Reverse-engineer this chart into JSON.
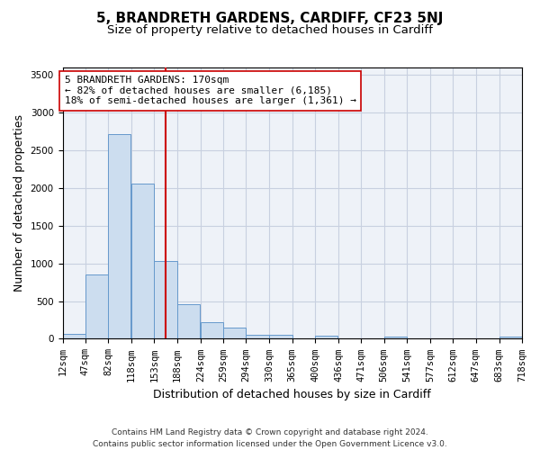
{
  "title_line1": "5, BRANDRETH GARDENS, CARDIFF, CF23 5NJ",
  "title_line2": "Size of property relative to detached houses in Cardiff",
  "xlabel": "Distribution of detached houses by size in Cardiff",
  "ylabel": "Number of detached properties",
  "bar_color": "#ccddef",
  "bar_edgecolor": "#6699cc",
  "bar_linewidth": 0.7,
  "grid_color": "#c8d0e0",
  "background_color": "#eef2f8",
  "vline_x": 170.5,
  "vline_color": "#cc0000",
  "bins": [
    12,
    47,
    82,
    118,
    153,
    188,
    224,
    259,
    294,
    330,
    365,
    400,
    436,
    471,
    506,
    541,
    577,
    612,
    647,
    683,
    718
  ],
  "bin_labels": [
    "12sqm",
    "47sqm",
    "82sqm",
    "118sqm",
    "153sqm",
    "188sqm",
    "224sqm",
    "259sqm",
    "294sqm",
    "330sqm",
    "365sqm",
    "400sqm",
    "436sqm",
    "471sqm",
    "506sqm",
    "541sqm",
    "577sqm",
    "612sqm",
    "647sqm",
    "683sqm",
    "718sqm"
  ],
  "bar_heights": [
    65,
    855,
    2720,
    2060,
    1030,
    455,
    220,
    150,
    55,
    55,
    0,
    40,
    0,
    0,
    25,
    0,
    0,
    0,
    0,
    25
  ],
  "ylim": [
    0,
    3600
  ],
  "yticks": [
    0,
    500,
    1000,
    1500,
    2000,
    2500,
    3000,
    3500
  ],
  "annotation_line1": "5 BRANDRETH GARDENS: 170sqm",
  "annotation_line2": "← 82% of detached houses are smaller (6,185)",
  "annotation_line3": "18% of semi-detached houses are larger (1,361) →",
  "annotation_box_edgecolor": "#cc0000",
  "footnote": "Contains HM Land Registry data © Crown copyright and database right 2024.\nContains public sector information licensed under the Open Government Licence v3.0.",
  "title_fontsize": 11,
  "subtitle_fontsize": 9.5,
  "label_fontsize": 9,
  "tick_fontsize": 7.5,
  "annotation_fontsize": 8,
  "footnote_fontsize": 6.5
}
